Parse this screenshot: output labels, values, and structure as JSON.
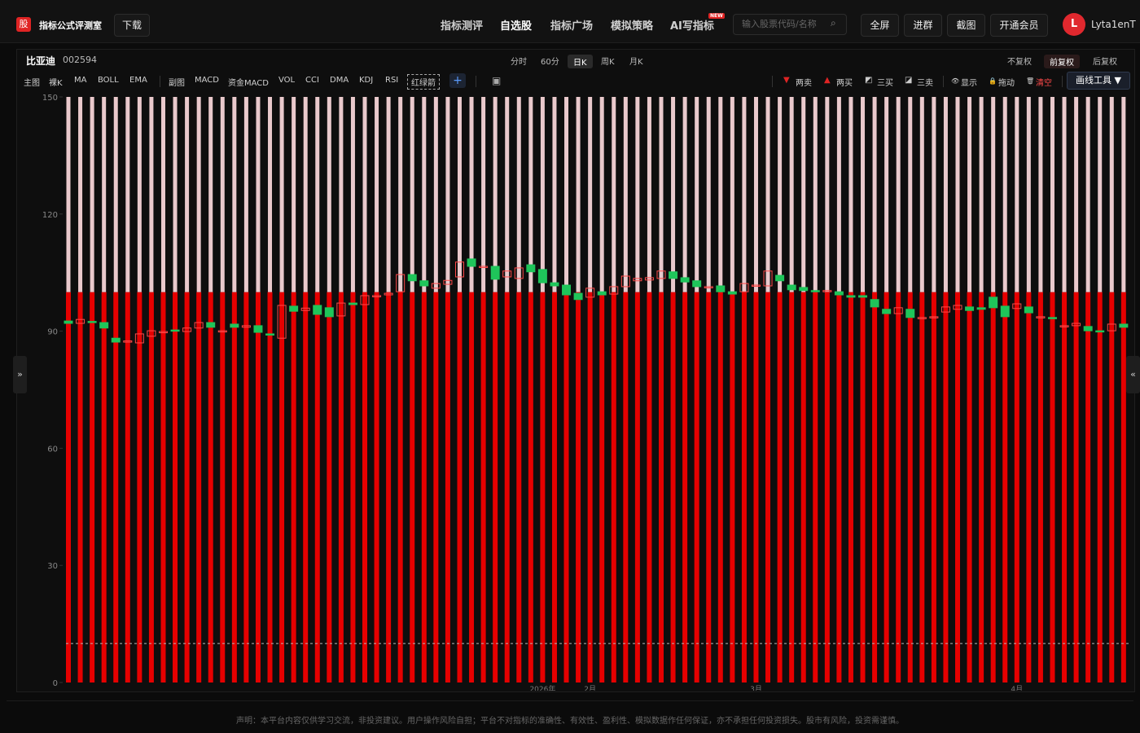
{
  "header": {
    "logo": "股",
    "site_title": "指标公式评测室",
    "download": "下载",
    "nav": [
      "指标测评",
      "自选股",
      "指标广场",
      "模拟策略",
      "AI写指标"
    ],
    "new_badge": "NEW",
    "search_placeholder": "输入股票代码/名称",
    "buttons": [
      "全屏",
      "进群",
      "截图",
      "开通会员"
    ],
    "avatar": "L",
    "username": "Lyta1enT"
  },
  "stock": {
    "name": "比亚迪",
    "code": "002594",
    "periods": [
      "分时",
      "60分",
      "日K",
      "周K",
      "月K"
    ],
    "adjust": [
      "不复权",
      "前复权",
      "后复权"
    ]
  },
  "toolbar": {
    "main_label": "主图",
    "main": [
      "裸K",
      "MA",
      "BOLL",
      "EMA"
    ],
    "sub_label": "副图",
    "sub": [
      "MACD",
      "资金MACD",
      "VOL",
      "CCI",
      "DMA",
      "KDJ",
      "RSI",
      "红绿箭"
    ],
    "add": "+",
    "signals": [
      "两卖",
      "两买",
      "三买",
      "三卖"
    ],
    "actions": [
      "显示",
      "拖动",
      "清空"
    ],
    "draw_tools": "画线工具 ▼"
  },
  "chart_data": {
    "type": "candlestick",
    "categories": [
      null,
      null,
      null,
      null,
      null,
      null,
      null,
      null,
      null,
      null,
      null,
      null,
      null,
      null,
      null,
      null,
      null,
      null,
      null,
      null,
      null,
      null,
      null,
      null,
      null,
      null,
      null,
      null,
      null,
      null,
      null,
      null,
      null,
      null,
      null,
      null,
      null,
      null,
      null,
      null,
      "2026年",
      null,
      null,
      null,
      "2月",
      null,
      null,
      null,
      null,
      null,
      null,
      null,
      null,
      null,
      null,
      null,
      null,
      null,
      "3月",
      null,
      null,
      null,
      null,
      null,
      null,
      null,
      null,
      null,
      null,
      null,
      null,
      null,
      null,
      null,
      null,
      null,
      null,
      null,
      null,
      null,
      "4月",
      null,
      null,
      null,
      null,
      null,
      null,
      null,
      null,
      null
    ],
    "open": [
      92.6,
      92.0,
      92.5,
      92.2,
      88.2,
      87.4,
      87.0,
      88.7,
      89.8,
      90.3,
      89.9,
      90.8,
      92.2,
      90.1,
      91.8,
      91.0,
      91.4,
      89.3,
      88.2,
      96.4,
      95.3,
      96.6,
      96.0,
      93.9,
      97.2,
      96.8,
      99.0,
      99.3,
      100.1,
      104.5,
      102.9,
      101.0,
      102.0,
      103.9,
      108.5,
      106.6,
      106.6,
      103.9,
      103.5,
      107.0,
      105.8,
      102.4,
      101.8,
      99.7,
      98.7,
      100.1,
      99.5,
      101.4,
      102.9,
      103.1,
      103.5,
      105.2,
      103.7,
      102.9,
      101.4,
      101.6,
      100.1,
      100.1,
      101.8,
      101.6,
      104.3,
      101.8,
      101.2,
      100.4,
      100.3,
      100.1,
      99.1,
      99.1,
      98.1,
      95.6,
      94.5,
      95.6,
      93.5,
      93.5,
      94.9,
      95.6,
      96.2,
      96.0,
      98.7,
      96.4,
      95.8,
      96.2,
      93.7,
      93.5,
      91.4,
      91.4,
      91.2,
      90.1,
      90.1,
      91.8
    ],
    "close": [
      92.0,
      93.0,
      92.3,
      90.8,
      87.2,
      87.5,
      89.3,
      90.1,
      89.9,
      90.1,
      90.8,
      92.2,
      91.0,
      90.1,
      91.0,
      91.4,
      89.7,
      89.2,
      96.6,
      95.1,
      95.9,
      94.3,
      93.7,
      97.2,
      96.8,
      99.1,
      99.1,
      99.7,
      104.5,
      102.9,
      101.6,
      102.2,
      103.0,
      107.7,
      106.6,
      106.6,
      103.3,
      105.4,
      106.2,
      105.2,
      102.4,
      101.6,
      99.3,
      98.1,
      101.0,
      99.3,
      101.4,
      104.1,
      103.5,
      103.7,
      105.4,
      103.5,
      102.6,
      101.4,
      101.4,
      100.1,
      99.5,
      102.2,
      101.8,
      105.4,
      102.9,
      100.6,
      100.4,
      100.3,
      100.4,
      99.3,
      98.7,
      98.7,
      96.2,
      94.5,
      96.0,
      93.5,
      93.5,
      93.7,
      96.2,
      96.6,
      95.3,
      95.6,
      96.0,
      93.7,
      97.0,
      94.7,
      93.7,
      93.3,
      91.4,
      92.0,
      90.1,
      90.0,
      91.8,
      91.0
    ],
    "up_color": "#ff4a4a",
    "down_color": "#1fc55a",
    "red_level": 100,
    "red_color": "#e60000",
    "pink_level": 150,
    "pink_color": "#e9c9cc",
    "dashed_level": 10,
    "ylim": [
      0,
      150
    ],
    "yticks": [
      0,
      30,
      60,
      90,
      120,
      150
    ]
  },
  "footer": {
    "disclaimer": "声明：本平台内容仅供学习交流，非投资建议。用户操作风险自担；平台不对指标的准确性、有效性、盈利性、模拟数据作任何保证，亦不承担任何投资损失。股市有风险，投资需谨慎。"
  }
}
